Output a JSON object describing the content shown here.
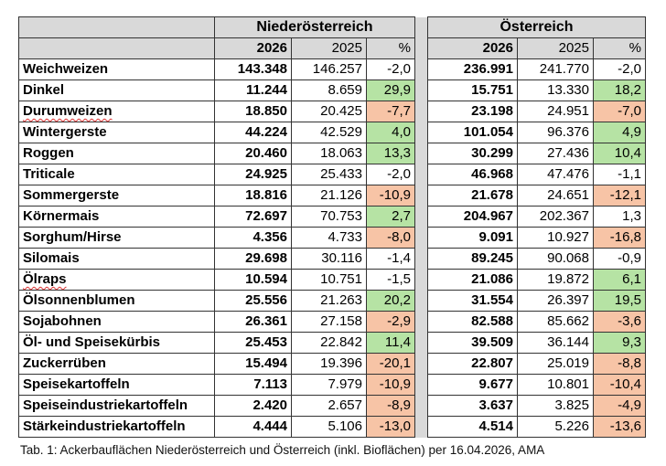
{
  "header": {
    "region1": "Niederösterreich",
    "region2": "Österreich",
    "col_2026": "2026",
    "col_2025": "2025",
    "col_pct": "%"
  },
  "colors": {
    "increase": "#b6e3a4",
    "decrease": "#f7c4a6",
    "header": "#d9d9d9",
    "separator": "#a6a6a6"
  },
  "rows": [
    {
      "label": "Weichweizen",
      "no26": "143.348",
      "no25": "146.257",
      "nop": "-2,0",
      "noc": "",
      "at26": "236.991",
      "at25": "241.770",
      "atp": "-2,0",
      "atc": ""
    },
    {
      "label": "Dinkel",
      "no26": "11.244",
      "no25": "8.659",
      "nop": "29,9",
      "noc": "g",
      "at26": "15.751",
      "at25": "13.330",
      "atp": "18,2",
      "atc": "g"
    },
    {
      "label": "Durumweizen",
      "no26": "18.850",
      "no25": "20.425",
      "nop": "-7,7",
      "noc": "r",
      "at26": "23.198",
      "at25": "24.951",
      "atp": "-7,0",
      "atc": "r",
      "spell": true
    },
    {
      "label": "Wintergerste",
      "no26": "44.224",
      "no25": "42.529",
      "nop": "4,0",
      "noc": "g",
      "at26": "101.054",
      "at25": "96.376",
      "atp": "4,9",
      "atc": "g"
    },
    {
      "label": "Roggen",
      "no26": "20.460",
      "no25": "18.063",
      "nop": "13,3",
      "noc": "g",
      "at26": "30.299",
      "at25": "27.436",
      "atp": "10,4",
      "atc": "g"
    },
    {
      "label": "Triticale",
      "no26": "24.925",
      "no25": "25.433",
      "nop": "-2,0",
      "noc": "",
      "at26": "46.968",
      "at25": "47.476",
      "atp": "-1,1",
      "atc": ""
    },
    {
      "label": "Sommergerste",
      "no26": "18.816",
      "no25": "21.126",
      "nop": "-10,9",
      "noc": "r",
      "at26": "21.678",
      "at25": "24.651",
      "atp": "-12,1",
      "atc": "r"
    },
    {
      "label": "Körnermais",
      "no26": "72.697",
      "no25": "70.753",
      "nop": "2,7",
      "noc": "g",
      "at26": "204.967",
      "at25": "202.367",
      "atp": "1,3",
      "atc": ""
    },
    {
      "label": "Sorghum/Hirse",
      "no26": "4.356",
      "no25": "4.733",
      "nop": "-8,0",
      "noc": "r",
      "at26": "9.091",
      "at25": "10.927",
      "atp": "-16,8",
      "atc": "r"
    },
    {
      "label": "Silomais",
      "no26": "29.698",
      "no25": "30.116",
      "nop": "-1,4",
      "noc": "",
      "at26": "89.245",
      "at25": "90.068",
      "atp": "-0,9",
      "atc": ""
    },
    {
      "label": "Ölraps",
      "no26": "10.594",
      "no25": "10.751",
      "nop": "-1,5",
      "noc": "",
      "at26": "21.086",
      "at25": "19.872",
      "atp": "6,1",
      "atc": "g",
      "spell": true
    },
    {
      "label": "Ölsonnenblumen",
      "no26": "25.556",
      "no25": "21.263",
      "nop": "20,2",
      "noc": "g",
      "at26": "31.554",
      "at25": "26.397",
      "atp": "19,5",
      "atc": "g"
    },
    {
      "label": "Sojabohnen",
      "no26": "26.361",
      "no25": "27.158",
      "nop": "-2,9",
      "noc": "r",
      "at26": "82.588",
      "at25": "85.662",
      "atp": "-3,6",
      "atc": "r"
    },
    {
      "label": "Öl- und Speisekürbis",
      "no26": "25.453",
      "no25": "22.842",
      "nop": "11,4",
      "noc": "g",
      "at26": "39.509",
      "at25": "36.144",
      "atp": "9,3",
      "atc": "g"
    },
    {
      "label": "Zuckerrüben",
      "no26": "15.494",
      "no25": "19.396",
      "nop": "-20,1",
      "noc": "r",
      "at26": "22.807",
      "at25": "25.019",
      "atp": "-8,8",
      "atc": "r"
    },
    {
      "label": "Speisekartoffeln",
      "no26": "7.113",
      "no25": "7.979",
      "nop": "-10,9",
      "noc": "r",
      "at26": "9.677",
      "at25": "10.801",
      "atp": "-10,4",
      "atc": "r"
    },
    {
      "label": "Speiseindustriekartoffeln",
      "no26": "2.420",
      "no25": "2.657",
      "nop": "-8,9",
      "noc": "r",
      "at26": "3.637",
      "at25": "3.825",
      "atp": "-4,9",
      "atc": "r"
    },
    {
      "label": "Stärkeindustriekartoffeln",
      "no26": "4.444",
      "no25": "5.106",
      "nop": "-13,0",
      "noc": "r",
      "at26": "4.514",
      "at25": "5.226",
      "atp": "-13,6",
      "atc": "r"
    }
  ],
  "caption": "Tab. 1: Ackerbauflächen Niederösterreich und Österreich (inkl. Bioflächen) per 16.04.2026, AMA"
}
